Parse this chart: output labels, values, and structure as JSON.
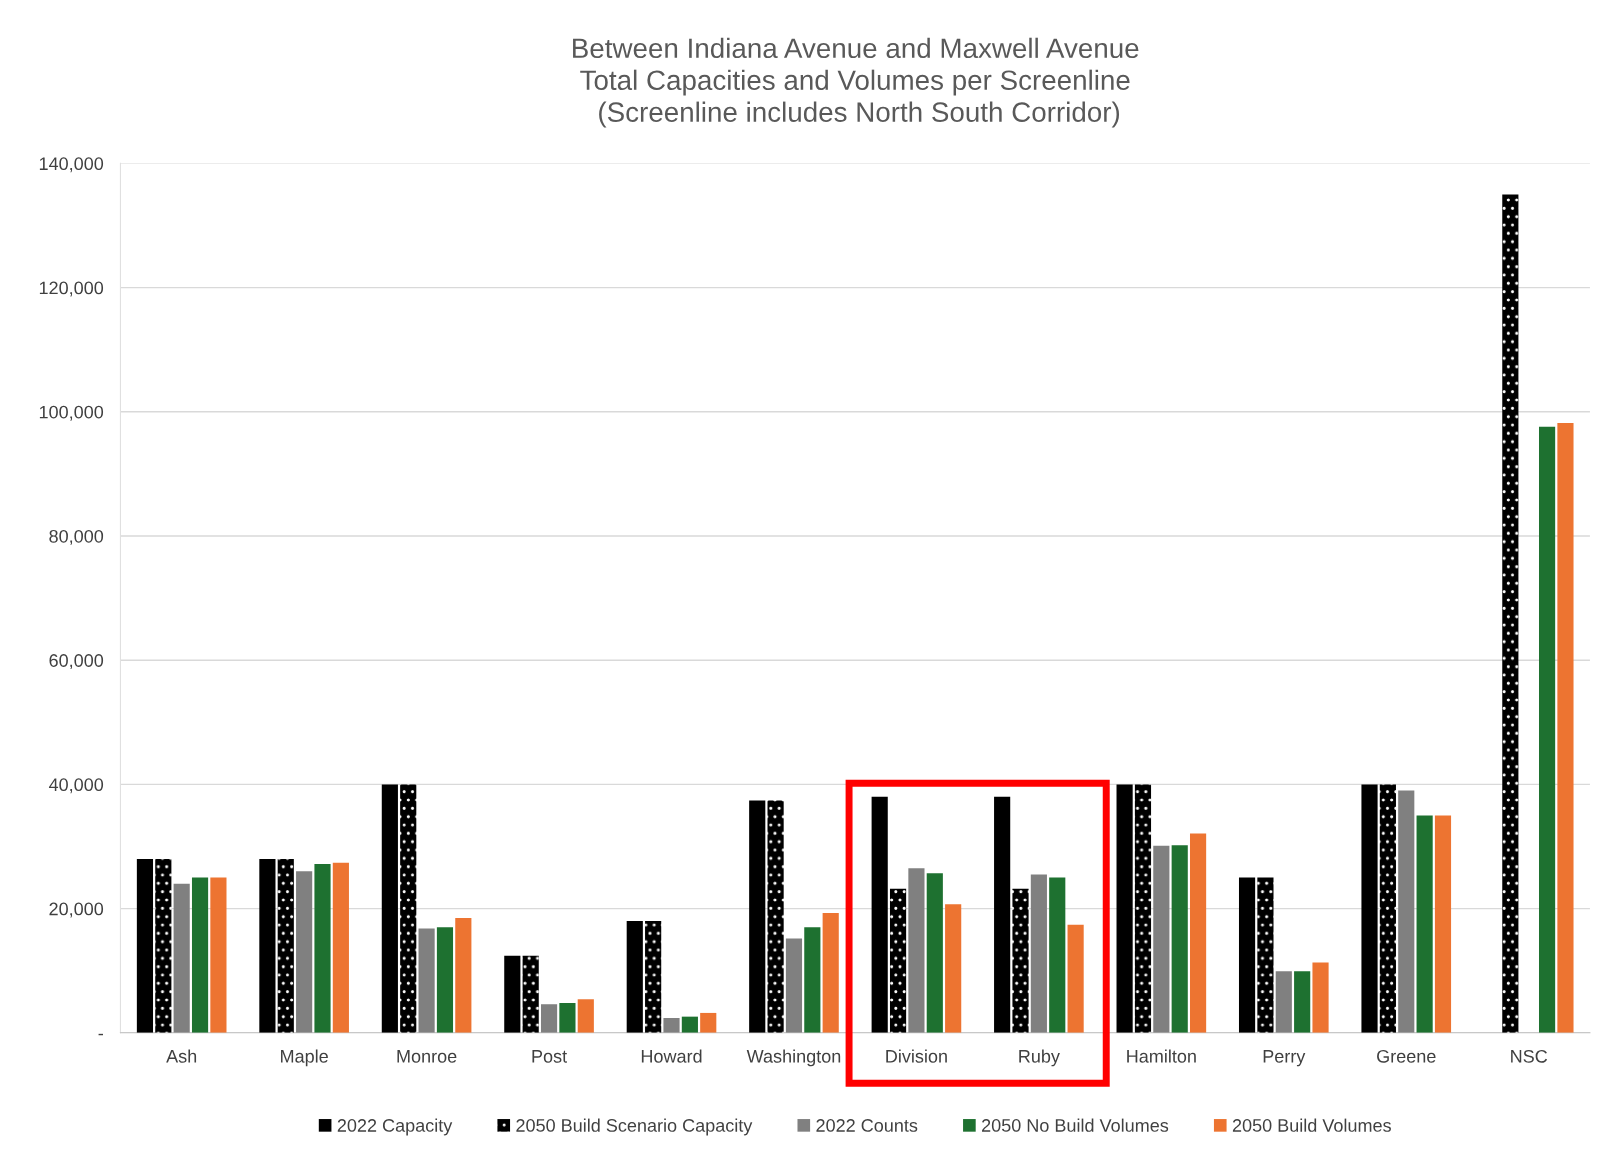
{
  "chart_data": {
    "type": "bar",
    "title": "Between Indiana Avenue and Maxwell Avenue\nTotal Capacities and Volumes per Screenline\n (Screenline includes North South Corridor)",
    "categories": [
      "Ash",
      "Maple",
      "Monroe",
      "Post",
      "Howard",
      "Washington",
      "Division",
      "Ruby",
      "Hamilton",
      "Perry",
      "Greene",
      "NSC"
    ],
    "series": [
      {
        "name": "2022 Capacity",
        "color": "#000000",
        "values": [
          28000,
          28000,
          40000,
          12400,
          18000,
          37400,
          38000,
          38000,
          40000,
          25000,
          40000,
          null
        ]
      },
      {
        "name": "2050 Build Scenario Capacity",
        "color": "#000000",
        "values": [
          28000,
          28000,
          40000,
          12400,
          18000,
          37400,
          23200,
          23200,
          40000,
          25000,
          40000,
          135000
        ]
      },
      {
        "name": "2022 Counts",
        "color": "#808080",
        "values": [
          24000,
          26000,
          16800,
          4600,
          2400,
          15200,
          26500,
          25500,
          30100,
          9900,
          39000,
          null
        ]
      },
      {
        "name": "2050 No Build Volumes",
        "color": "#1e7130",
        "values": [
          25000,
          27200,
          17000,
          4800,
          2600,
          17000,
          25700,
          25000,
          30200,
          9900,
          35000,
          97600
        ]
      },
      {
        "name": "2050 Build Volumes",
        "color": "#ed7431",
        "values": [
          25000,
          27400,
          18500,
          5400,
          3200,
          19300,
          20700,
          17400,
          32100,
          11300,
          35000,
          98200
        ]
      }
    ],
    "ylim": [
      0,
      140000
    ],
    "yticks": [
      {
        "value": 0,
        "label": "-"
      },
      {
        "value": 20000,
        "label": "20,000"
      },
      {
        "value": 40000,
        "label": "40,000"
      },
      {
        "value": 60000,
        "label": "60,000"
      },
      {
        "value": 80000,
        "label": "80,000"
      },
      {
        "value": 100000,
        "label": "100,000"
      },
      {
        "value": 120000,
        "label": "120,000"
      },
      {
        "value": 140000,
        "label": "140,000"
      }
    ],
    "grid": "y",
    "legend": "bottom"
  }
}
